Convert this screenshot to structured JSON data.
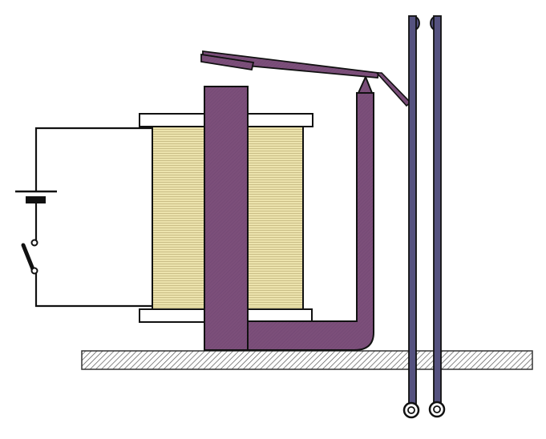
{
  "diagram": {
    "description_labels": [],
    "colors": {
      "iron": "#7c4f7a",
      "iron_dark": "#5e3a5c",
      "coil": "#e8dfa8",
      "coil_line": "#bfb27a",
      "contact": "#55527f",
      "flange": "#ffffff",
      "base_hatch": "#555555",
      "wire": "#111111"
    },
    "components": [
      {
        "id": "battery",
        "icon": "battery-icon"
      },
      {
        "id": "switch",
        "icon": "switch-icon",
        "state": "open"
      },
      {
        "id": "coil",
        "icon": "coil-icon"
      },
      {
        "id": "core",
        "icon": "iron-core-icon"
      },
      {
        "id": "yoke",
        "icon": "yoke-icon"
      },
      {
        "id": "armature",
        "icon": "armature-lever-icon"
      },
      {
        "id": "contacts",
        "icon": "spring-contact-icon",
        "count": 2
      },
      {
        "id": "base",
        "icon": "base-plate-icon"
      }
    ]
  }
}
